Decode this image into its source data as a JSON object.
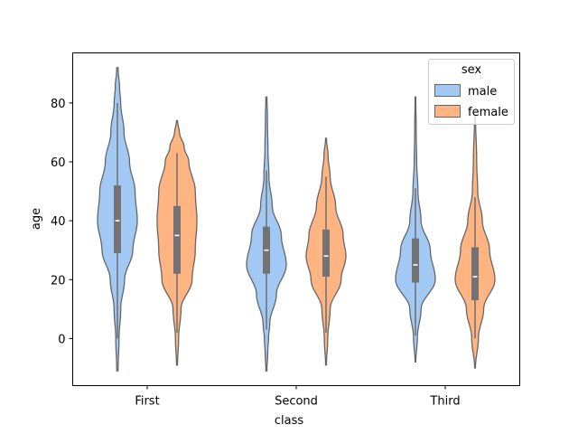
{
  "chart_data": {
    "type": "violin",
    "title": "",
    "xlabel": "class",
    "ylabel": "age",
    "categories": [
      "First",
      "Second",
      "Third"
    ],
    "ylim": [
      -16,
      97
    ],
    "yticks": [
      0,
      20,
      40,
      60,
      80
    ],
    "grid": false,
    "legend": {
      "title": "sex",
      "placement": "top-right",
      "entries": [
        {
          "name": "male",
          "color": "#a1c9f4"
        },
        {
          "name": "female",
          "color": "#ffb482"
        }
      ]
    },
    "series": [
      {
        "name": "male",
        "color": "#a1c9f4",
        "groups": [
          {
            "category": "First",
            "min": -11,
            "max": 92,
            "q1": 29,
            "median": 40,
            "q3": 52,
            "whisker_low": 0,
            "whisker_high": 80,
            "density": [
              [
                -11,
                0.6
              ],
              [
                0,
                1.5
              ],
              [
                10,
                3
              ],
              [
                20,
                6.5
              ],
              [
                30,
                14
              ],
              [
                40,
                18
              ],
              [
                50,
                16
              ],
              [
                60,
                11
              ],
              [
                70,
                6
              ],
              [
                80,
                3
              ],
              [
                85,
                2
              ],
              [
                92,
                0.6
              ]
            ]
          },
          {
            "category": "Second",
            "min": -11,
            "max": 82,
            "q1": 22,
            "median": 30,
            "q3": 38,
            "whisker_low": 3,
            "whisker_high": 57,
            "density": [
              [
                -11,
                0.6
              ],
              [
                -5,
                1.5
              ],
              [
                0,
                2.5
              ],
              [
                5,
                4
              ],
              [
                15,
                12
              ],
              [
                25,
                24
              ],
              [
                35,
                18
              ],
              [
                45,
                7
              ],
              [
                55,
                3
              ],
              [
                65,
                1.8
              ],
              [
                75,
                1.2
              ],
              [
                82,
                0.6
              ]
            ]
          },
          {
            "category": "Third",
            "min": -8,
            "max": 82,
            "q1": 19,
            "median": 25,
            "q3": 34,
            "whisker_low": 1,
            "whisker_high": 51,
            "density": [
              [
                -8,
                0.6
              ],
              [
                0,
                3
              ],
              [
                10,
                9
              ],
              [
                20,
                32
              ],
              [
                30,
                24
              ],
              [
                40,
                9
              ],
              [
                50,
                4
              ],
              [
                60,
                2
              ],
              [
                70,
                1.2
              ],
              [
                82,
                0.6
              ]
            ]
          }
        ]
      },
      {
        "name": "female",
        "color": "#ffb482",
        "groups": [
          {
            "category": "First",
            "min": -9,
            "max": 74,
            "q1": 22,
            "median": 35,
            "q3": 45,
            "whisker_low": 2,
            "whisker_high": 63,
            "density": [
              [
                -9,
                0.6
              ],
              [
                0,
                2
              ],
              [
                10,
                5
              ],
              [
                20,
                19
              ],
              [
                30,
                23
              ],
              [
                40,
                25
              ],
              [
                50,
                23
              ],
              [
                60,
                15
              ],
              [
                65,
                9
              ],
              [
                70,
                3
              ],
              [
                74,
                0.6
              ]
            ]
          },
          {
            "category": "Second",
            "min": -9,
            "max": 68,
            "q1": 21,
            "median": 28,
            "q3": 37,
            "whisker_low": 2,
            "whisker_high": 55,
            "density": [
              [
                -9,
                0.6
              ],
              [
                0,
                2.5
              ],
              [
                10,
                6
              ],
              [
                20,
                22
              ],
              [
                28,
                29
              ],
              [
                35,
                25
              ],
              [
                45,
                14
              ],
              [
                55,
                6
              ],
              [
                62,
                3
              ],
              [
                68,
                0.6
              ]
            ]
          },
          {
            "category": "Third",
            "min": -10,
            "max": 76,
            "q1": 13,
            "median": 21,
            "q3": 31,
            "whisker_low": 0,
            "whisker_high": 48,
            "density": [
              [
                -10,
                0.6
              ],
              [
                0,
                5
              ],
              [
                10,
                13
              ],
              [
                20,
                30
              ],
              [
                30,
                22
              ],
              [
                40,
                11
              ],
              [
                50,
                4
              ],
              [
                60,
                2.5
              ],
              [
                76,
                0.6
              ]
            ]
          }
        ]
      }
    ]
  }
}
